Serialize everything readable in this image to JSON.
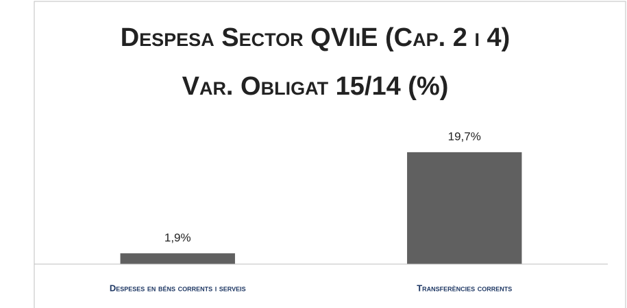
{
  "chart_data": {
    "type": "bar",
    "title": [
      "Despesa Sector QVIiE (Cap. 2 i 4)",
      "Var. Obligat 15/14 (%)"
    ],
    "categories": [
      "Despeses en béns corrents i serveis",
      "Transferències corrents"
    ],
    "values": [
      1.9,
      19.7
    ],
    "value_labels": [
      "1,9%",
      "19,7%"
    ],
    "color": "#606060",
    "ylim": [
      0,
      25
    ]
  }
}
